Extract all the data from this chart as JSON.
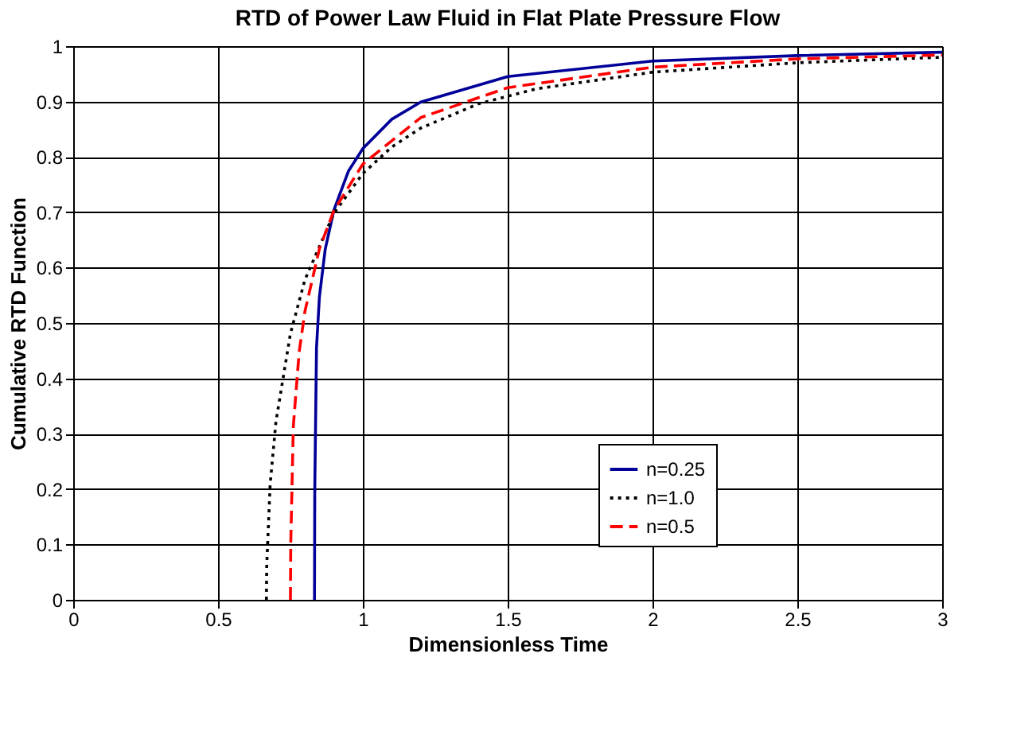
{
  "chart_data": {
    "type": "line",
    "title": "RTD of Power Law Fluid in Flat Plate Pressure Flow",
    "xlabel": "Dimensionless Time",
    "ylabel": "Cumulative RTD Function",
    "xlim": [
      0,
      3
    ],
    "xticks": [
      0,
      0.5,
      1,
      1.5,
      2,
      2.5,
      3
    ],
    "ylim": [
      0,
      1
    ],
    "yticks": [
      0,
      0.1,
      0.2,
      0.3,
      0.4,
      0.5,
      0.6,
      0.7,
      0.8,
      0.9,
      1
    ],
    "grid": true,
    "legend": "bottom right",
    "marker": "none",
    "series": [
      {
        "name": "n=0.25",
        "color": "#000099",
        "line_style": "solid",
        "x": [
          0.833,
          0.834,
          0.84,
          0.85,
          0.87,
          0.9,
          0.95,
          1.0,
          1.1,
          1.2,
          1.5,
          2.0,
          2.5,
          3.0
        ],
        "values": [
          0,
          0.2,
          0.456,
          0.547,
          0.633,
          0.704,
          0.774,
          0.815,
          0.868,
          0.899,
          0.945,
          0.973,
          0.983,
          0.989
        ]
      },
      {
        "name": "n=1.0",
        "color": "#000000",
        "line_style": "dotted",
        "x": [
          0.667,
          0.668,
          0.68,
          0.7,
          0.75,
          0.8,
          0.9,
          1.0,
          1.1,
          1.2,
          1.4,
          1.6,
          2.0,
          2.5,
          3.0
        ],
        "values": [
          0,
          0.06,
          0.209,
          0.322,
          0.481,
          0.578,
          0.698,
          0.77,
          0.818,
          0.852,
          0.896,
          0.923,
          0.953,
          0.97,
          0.98
        ]
      },
      {
        "name": "n=0.5",
        "color": "#ff0000",
        "line_style": "dashed",
        "x": [
          0.75,
          0.751,
          0.76,
          0.78,
          0.8,
          0.85,
          0.9,
          1.0,
          1.2,
          1.5,
          2.0,
          2.5,
          3.0
        ],
        "values": [
          0,
          0.1,
          0.314,
          0.447,
          0.521,
          0.634,
          0.703,
          0.787,
          0.871,
          0.925,
          0.962,
          0.977,
          0.984
        ]
      }
    ]
  }
}
